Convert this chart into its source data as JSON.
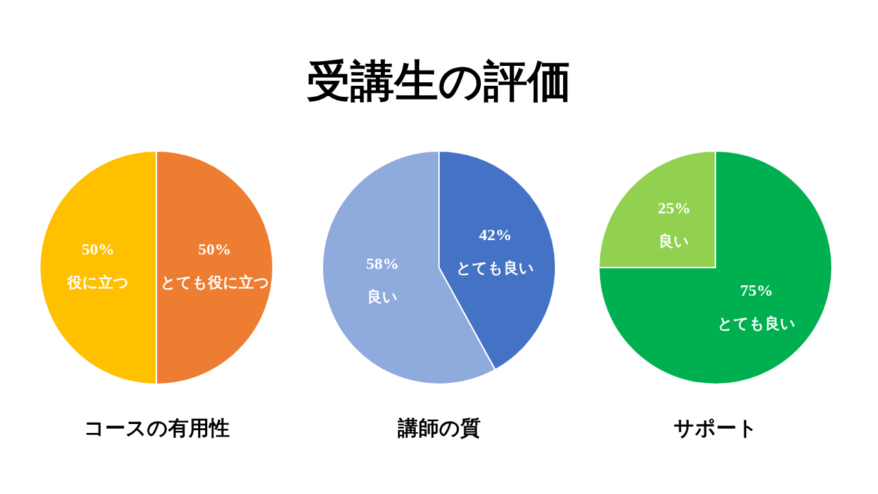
{
  "chart_data": [
    {
      "type": "other",
      "title": "受講生の評価"
    },
    {
      "type": "pie",
      "title": "コースの有用性",
      "categories": [
        "とても役に立つ",
        "役に立つ"
      ],
      "values": [
        50,
        50
      ],
      "colors": [
        "#ed7d31",
        "#ffc000"
      ],
      "value_labels": [
        "50%",
        "50%"
      ]
    },
    {
      "type": "pie",
      "title": "講師の質",
      "categories": [
        "とても良い",
        "良い"
      ],
      "values": [
        42,
        58
      ],
      "colors": [
        "#4472c4",
        "#8faadc"
      ],
      "value_labels": [
        "42%",
        "58%"
      ]
    },
    {
      "type": "pie",
      "title": "サポート",
      "categories": [
        "とても良い",
        "良い"
      ],
      "values": [
        75,
        25
      ],
      "colors": [
        "#00b050",
        "#92d050"
      ],
      "value_labels": [
        "75%",
        "25%"
      ]
    }
  ]
}
